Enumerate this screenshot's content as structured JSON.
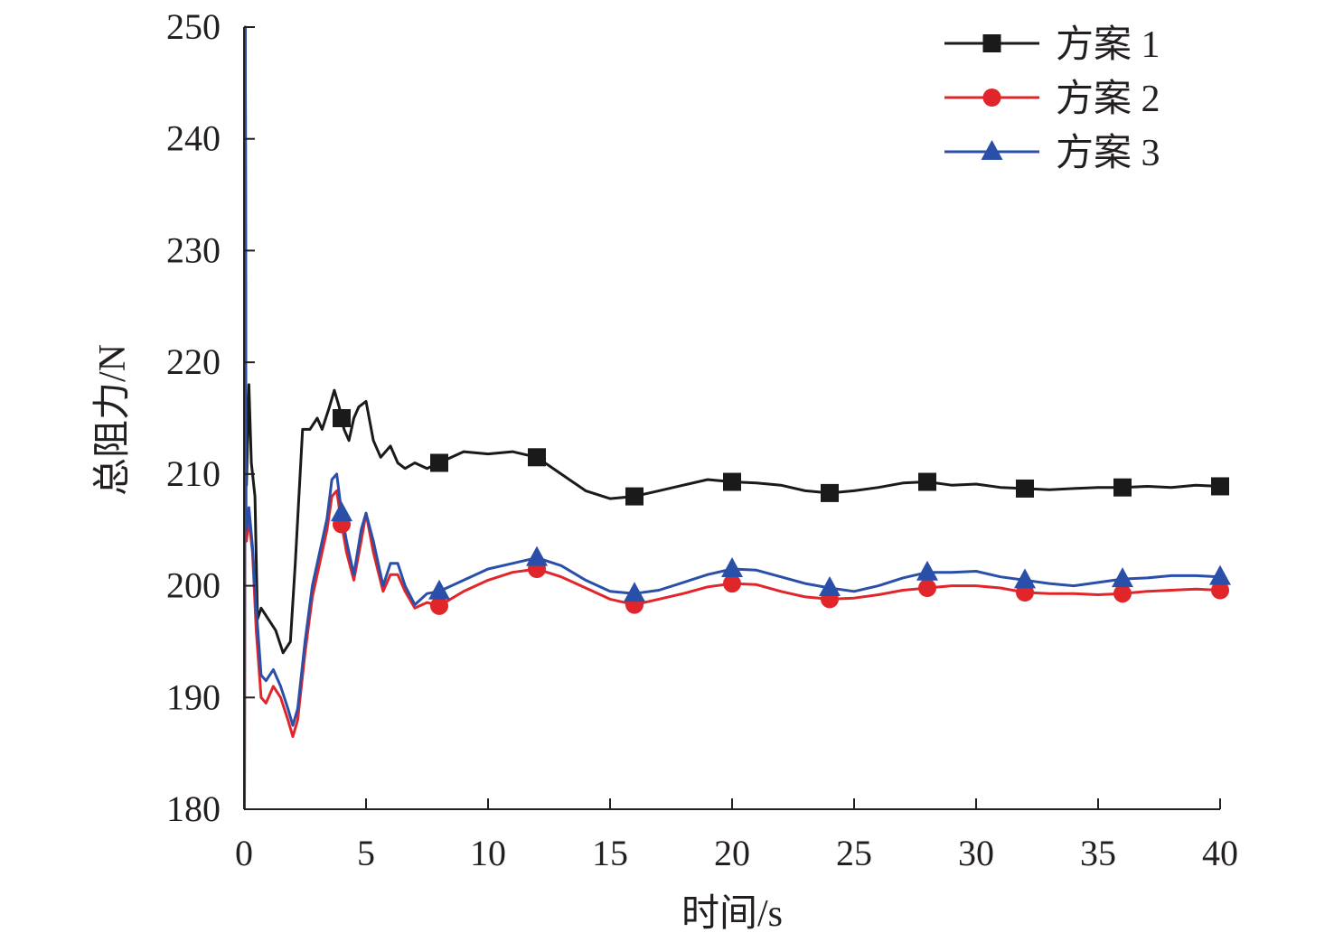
{
  "chart_data": {
    "type": "line",
    "xlabel": "时间/s",
    "ylabel": "总阻力/N",
    "xlim": [
      0,
      40
    ],
    "ylim": [
      180,
      250
    ],
    "xticks": [
      0,
      5,
      10,
      15,
      20,
      25,
      30,
      35,
      40
    ],
    "yticks": [
      180,
      190,
      200,
      210,
      220,
      230,
      240,
      250
    ],
    "legend_position": "top-right",
    "grid": false,
    "series": [
      {
        "name": "方案 1",
        "color": "#1a1a1a",
        "marker": "square",
        "marker_x": [
          4,
          8,
          12,
          16,
          20,
          24,
          28,
          32,
          36,
          40
        ],
        "x": [
          0.1,
          0.2,
          0.3,
          0.45,
          0.55,
          0.7,
          1.0,
          1.3,
          1.6,
          1.9,
          2.1,
          2.4,
          2.7,
          3.0,
          3.2,
          3.5,
          3.7,
          3.9,
          4.1,
          4.3,
          4.5,
          4.7,
          5.0,
          5.3,
          5.6,
          6.0,
          6.3,
          6.6,
          7.0,
          7.5,
          8.0,
          8.5,
          9.0,
          10.0,
          11.0,
          12.0,
          13.0,
          14.0,
          15.0,
          16.0,
          17.0,
          18.0,
          19.0,
          20.0,
          21.0,
          22.0,
          23.0,
          24.0,
          25.0,
          26.0,
          27.0,
          28.0,
          29.0,
          30.0,
          31.0,
          32.0,
          33.0,
          34.0,
          35.0,
          36.0,
          37.0,
          38.0,
          39.0,
          40.0
        ],
        "y": [
          209,
          218,
          211,
          208,
          197,
          198,
          197,
          196,
          194,
          195,
          202,
          214,
          214,
          215,
          214,
          216,
          217.5,
          216,
          214,
          213,
          215,
          216,
          216.5,
          213,
          211.5,
          212.5,
          211,
          210.5,
          211,
          210.5,
          211,
          211.5,
          212,
          211.8,
          212,
          211.5,
          210,
          208.5,
          207.8,
          208,
          208.5,
          209,
          209.5,
          209.3,
          209.2,
          209,
          208.5,
          208.3,
          208.5,
          208.8,
          209.2,
          209.3,
          209,
          209.1,
          208.8,
          208.7,
          208.6,
          208.7,
          208.8,
          208.8,
          208.9,
          208.8,
          209,
          208.9
        ]
      },
      {
        "name": "方案 2",
        "color": "#e0262a",
        "marker": "circle",
        "marker_x": [
          4,
          8,
          12,
          16,
          20,
          24,
          28,
          32,
          36,
          40
        ],
        "x": [
          0.1,
          0.2,
          0.35,
          0.5,
          0.7,
          0.9,
          1.2,
          1.5,
          1.8,
          2.0,
          2.2,
          2.5,
          2.8,
          3.1,
          3.4,
          3.6,
          3.8,
          4.0,
          4.2,
          4.5,
          4.8,
          5.0,
          5.3,
          5.7,
          6.0,
          6.3,
          6.6,
          7.0,
          7.5,
          8.0,
          9.0,
          10.0,
          11.0,
          12.0,
          13.0,
          14.0,
          15.0,
          16.0,
          17.0,
          18.0,
          19.0,
          20.0,
          21.0,
          22.0,
          23.0,
          24.0,
          25.0,
          26.0,
          27.0,
          28.0,
          29.0,
          30.0,
          31.0,
          32.0,
          33.0,
          34.0,
          35.0,
          36.0,
          37.0,
          38.0,
          39.0,
          40.0
        ],
        "y": [
          204,
          206,
          203,
          196,
          190,
          189.5,
          191,
          190,
          188,
          186.5,
          188,
          194,
          199,
          202,
          205,
          208,
          208.5,
          205.5,
          203,
          200.5,
          204,
          206.5,
          203,
          199.5,
          201,
          201,
          199.5,
          198,
          198.5,
          198.2,
          199.5,
          200.5,
          201.2,
          201.5,
          200.8,
          199.8,
          198.8,
          198.3,
          198.8,
          199.3,
          199.9,
          200.2,
          200.1,
          199.5,
          199,
          198.8,
          198.9,
          199.2,
          199.6,
          199.8,
          200,
          200,
          199.8,
          199.4,
          199.3,
          199.3,
          199.2,
          199.3,
          199.5,
          199.6,
          199.7,
          199.6
        ]
      },
      {
        "name": "方案 3",
        "color": "#2a4fa8",
        "marker": "triangle",
        "marker_x": [
          4,
          8,
          12,
          16,
          20,
          24,
          28,
          32,
          36,
          40
        ],
        "x": [
          0.1,
          0.2,
          0.35,
          0.5,
          0.7,
          0.9,
          1.2,
          1.5,
          1.8,
          2.0,
          2.2,
          2.5,
          2.8,
          3.1,
          3.4,
          3.6,
          3.8,
          4.0,
          4.2,
          4.5,
          4.8,
          5.0,
          5.3,
          5.7,
          6.0,
          6.3,
          6.6,
          7.0,
          7.5,
          8.0,
          9.0,
          10.0,
          11.0,
          12.0,
          13.0,
          14.0,
          15.0,
          16.0,
          17.0,
          18.0,
          19.0,
          20.0,
          21.0,
          22.0,
          23.0,
          24.0,
          25.0,
          26.0,
          27.0,
          28.0,
          29.0,
          30.0,
          31.0,
          32.0,
          33.0,
          34.0,
          35.0,
          36.0,
          37.0,
          38.0,
          39.0,
          40.0
        ],
        "y": [
          205,
          207,
          203.5,
          198,
          192,
          191.5,
          192.5,
          191,
          189,
          187.5,
          189,
          195,
          200,
          203,
          206,
          209.5,
          210,
          206.5,
          204,
          201,
          205,
          206.5,
          204,
          200,
          202,
          202,
          200,
          198.3,
          199.3,
          199.5,
          200.5,
          201.5,
          202,
          202.5,
          201.8,
          200.5,
          199.5,
          199.3,
          199.6,
          200.3,
          201,
          201.5,
          201.4,
          200.8,
          200.2,
          199.8,
          199.5,
          200,
          200.7,
          201.2,
          201.2,
          201.3,
          200.8,
          200.5,
          200.2,
          200,
          200.3,
          200.6,
          200.7,
          200.9,
          200.9,
          200.8
        ]
      }
    ]
  }
}
